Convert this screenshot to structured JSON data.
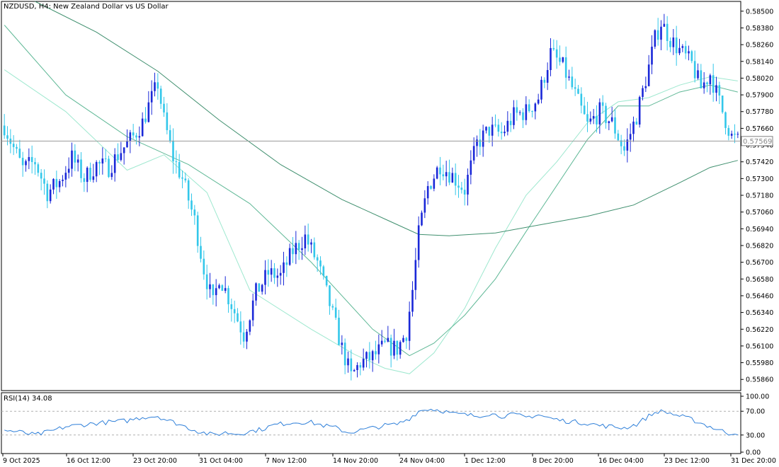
{
  "header": {
    "title": "NZDUSD, H4:  New Zealand Dollar vs US Dollar"
  },
  "colors": {
    "bull": "#1a28d8",
    "bear": "#33c7ea",
    "ma_fast": "#9ee8cf",
    "ma_mid": "#5fb896",
    "ma_slow": "#3f8f6e",
    "rsi": "#2e7fd9",
    "price_line": "#9a9a9a",
    "grid": "#c8c8c8"
  },
  "chart_data": [
    {
      "type": "candlestick",
      "title": "NZDUSD, H4:  New Zealand Dollar vs US Dollar",
      "ylim": [
        0.5578,
        0.5857
      ],
      "y_ticks": [
        "0.58500",
        "0.58380",
        "0.58260",
        "0.58140",
        "0.58020",
        "0.57900",
        "0.57780",
        "0.57660",
        "0.57540",
        "0.57420",
        "0.57300",
        "0.57180",
        "0.57060",
        "0.56940",
        "0.56820",
        "0.56700",
        "0.56580",
        "0.56460",
        "0.56340",
        "0.56220",
        "0.56100",
        "0.55980",
        "0.55860"
      ],
      "x_ticks": [
        "9 Oct 2025",
        "16 Oct 12:00",
        "23 Oct 20:00",
        "31 Oct 04:00",
        "7 Nov 12:00",
        "14 Nov 20:00",
        "24 Nov 04:00",
        "1 Dec 12:00",
        "8 Dec 20:00",
        "16 Dec 04:00",
        "23 Dec 12:00",
        "31 Dec 20:00"
      ],
      "current_price": "0.57569",
      "close_path": [
        [
          0,
          0.5768
        ],
        [
          3,
          0.5752
        ],
        [
          6,
          0.5737
        ],
        [
          10,
          0.5742
        ],
        [
          14,
          0.572
        ],
        [
          18,
          0.5728
        ],
        [
          22,
          0.5745
        ],
        [
          26,
          0.573
        ],
        [
          30,
          0.574
        ],
        [
          34,
          0.5738
        ],
        [
          38,
          0.575
        ],
        [
          42,
          0.576
        ],
        [
          45,
          0.577
        ],
        [
          47,
          0.5782
        ],
        [
          50,
          0.5798
        ],
        [
          52,
          0.5772
        ],
        [
          55,
          0.5745
        ],
        [
          58,
          0.573
        ],
        [
          62,
          0.57
        ],
        [
          65,
          0.5665
        ],
        [
          68,
          0.564
        ],
        [
          70,
          0.566
        ],
        [
          74,
          0.564
        ],
        [
          78,
          0.5618
        ],
        [
          82,
          0.5648
        ],
        [
          86,
          0.5662
        ],
        [
          90,
          0.566
        ],
        [
          94,
          0.5678
        ],
        [
          98,
          0.5688
        ],
        [
          102,
          0.567
        ],
        [
          106,
          0.564
        ],
        [
          110,
          0.5608
        ],
        [
          113,
          0.5588
        ],
        [
          116,
          0.5598
        ],
        [
          120,
          0.5602
        ],
        [
          124,
          0.561
        ],
        [
          128,
          0.5608
        ],
        [
          131,
          0.562
        ],
        [
          133,
          0.565
        ],
        [
          135,
          0.569
        ],
        [
          138,
          0.5724
        ],
        [
          142,
          0.574
        ],
        [
          146,
          0.5732
        ],
        [
          150,
          0.5722
        ],
        [
          154,
          0.5755
        ],
        [
          158,
          0.5765
        ],
        [
          162,
          0.5762
        ],
        [
          166,
          0.5775
        ],
        [
          170,
          0.5778
        ],
        [
          174,
          0.5788
        ],
        [
          178,
          0.582
        ],
        [
          182,
          0.581
        ],
        [
          186,
          0.579
        ],
        [
          190,
          0.5768
        ],
        [
          194,
          0.5778
        ],
        [
          198,
          0.577
        ],
        [
          202,
          0.575
        ],
        [
          206,
          0.5775
        ],
        [
          210,
          0.581
        ],
        [
          212,
          0.583
        ],
        [
          214,
          0.5842
        ],
        [
          217,
          0.583
        ],
        [
          220,
          0.5822
        ],
        [
          224,
          0.5812
        ],
        [
          227,
          0.5795
        ],
        [
          230,
          0.5805
        ],
        [
          234,
          0.5778
        ],
        [
          237,
          0.576
        ],
        [
          239,
          0.5757
        ]
      ],
      "series": [
        {
          "values": [
            [
              0,
              0.5808
            ],
            [
              20,
              0.5778
            ],
            [
              40,
              0.5736
            ],
            [
              52,
              0.5747
            ],
            [
              66,
              0.572
            ],
            [
              80,
              0.565
            ],
            [
              100,
              0.5622
            ],
            [
              114,
              0.5604
            ],
            [
              124,
              0.5594
            ],
            [
              132,
              0.559
            ],
            [
              140,
              0.5605
            ],
            [
              150,
              0.5637
            ],
            [
              160,
              0.568
            ],
            [
              170,
              0.5718
            ],
            [
              180,
              0.5742
            ],
            [
              190,
              0.577
            ],
            [
              200,
              0.5785
            ],
            [
              210,
              0.5788
            ],
            [
              220,
              0.5797
            ],
            [
              230,
              0.5803
            ],
            [
              239,
              0.58
            ]
          ]
        },
        {
          "values": [
            [
              0,
              0.584
            ],
            [
              20,
              0.579
            ],
            [
              40,
              0.576
            ],
            [
              60,
              0.574
            ],
            [
              80,
              0.5712
            ],
            [
              100,
              0.567
            ],
            [
              120,
              0.5622
            ],
            [
              132,
              0.5603
            ],
            [
              140,
              0.5612
            ],
            [
              150,
              0.5632
            ],
            [
              160,
              0.5658
            ],
            [
              170,
              0.5692
            ],
            [
              180,
              0.5725
            ],
            [
              190,
              0.5758
            ],
            [
              200,
              0.5782
            ],
            [
              210,
              0.5782
            ],
            [
              220,
              0.5792
            ],
            [
              230,
              0.5797
            ],
            [
              239,
              0.5792
            ]
          ]
        },
        {
          "values": [
            [
              10,
              0.5857
            ],
            [
              30,
              0.5835
            ],
            [
              50,
              0.5807
            ],
            [
              70,
              0.5772
            ],
            [
              90,
              0.574
            ],
            [
              110,
              0.5715
            ],
            [
              125,
              0.57
            ],
            [
              135,
              0.569
            ],
            [
              145,
              0.5689
            ],
            [
              160,
              0.5691
            ],
            [
              175,
              0.5697
            ],
            [
              190,
              0.5703
            ],
            [
              205,
              0.5711
            ],
            [
              220,
              0.5727
            ],
            [
              230,
              0.5738
            ],
            [
              239,
              0.5743
            ]
          ]
        }
      ]
    },
    {
      "type": "line",
      "title": "RSI(14) 34.08",
      "ylim": [
        0,
        100
      ],
      "y_ticks": [
        "100.00",
        "70.00",
        "30.00",
        "0.00"
      ],
      "levels": [
        70,
        30
      ],
      "series": [
        {
          "name": "RSI(14)",
          "values": [
            [
              0,
              38
            ],
            [
              5,
              35
            ],
            [
              10,
              30
            ],
            [
              15,
              36
            ],
            [
              20,
              44
            ],
            [
              25,
              47
            ],
            [
              30,
              50
            ],
            [
              35,
              52
            ],
            [
              40,
              54
            ],
            [
              45,
              60
            ],
            [
              50,
              62
            ],
            [
              53,
              55
            ],
            [
              56,
              50
            ],
            [
              60,
              42
            ],
            [
              64,
              35
            ],
            [
              68,
              30
            ],
            [
              72,
              34
            ],
            [
              76,
              32
            ],
            [
              80,
              36
            ],
            [
              84,
              40
            ],
            [
              88,
              47
            ],
            [
              92,
              50
            ],
            [
              96,
              52
            ],
            [
              100,
              51
            ],
            [
              104,
              46
            ],
            [
              108,
              42
            ],
            [
              112,
              34
            ],
            [
              116,
              38
            ],
            [
              120,
              42
            ],
            [
              124,
              46
            ],
            [
              128,
              48
            ],
            [
              132,
              58
            ],
            [
              135,
              70
            ],
            [
              138,
              74
            ],
            [
              142,
              72
            ],
            [
              146,
              66
            ],
            [
              150,
              64
            ],
            [
              154,
              62
            ],
            [
              158,
              66
            ],
            [
              162,
              62
            ],
            [
              166,
              64
            ],
            [
              170,
              60
            ],
            [
              174,
              64
            ],
            [
              178,
              58
            ],
            [
              182,
              54
            ],
            [
              186,
              52
            ],
            [
              190,
              50
            ],
            [
              194,
              46
            ],
            [
              198,
              44
            ],
            [
              202,
              42
            ],
            [
              206,
              48
            ],
            [
              210,
              62
            ],
            [
              213,
              70
            ],
            [
              216,
              68
            ],
            [
              220,
              62
            ],
            [
              224,
              56
            ],
            [
              228,
              48
            ],
            [
              232,
              40
            ],
            [
              236,
              33
            ],
            [
              239,
              34
            ]
          ]
        }
      ]
    }
  ]
}
